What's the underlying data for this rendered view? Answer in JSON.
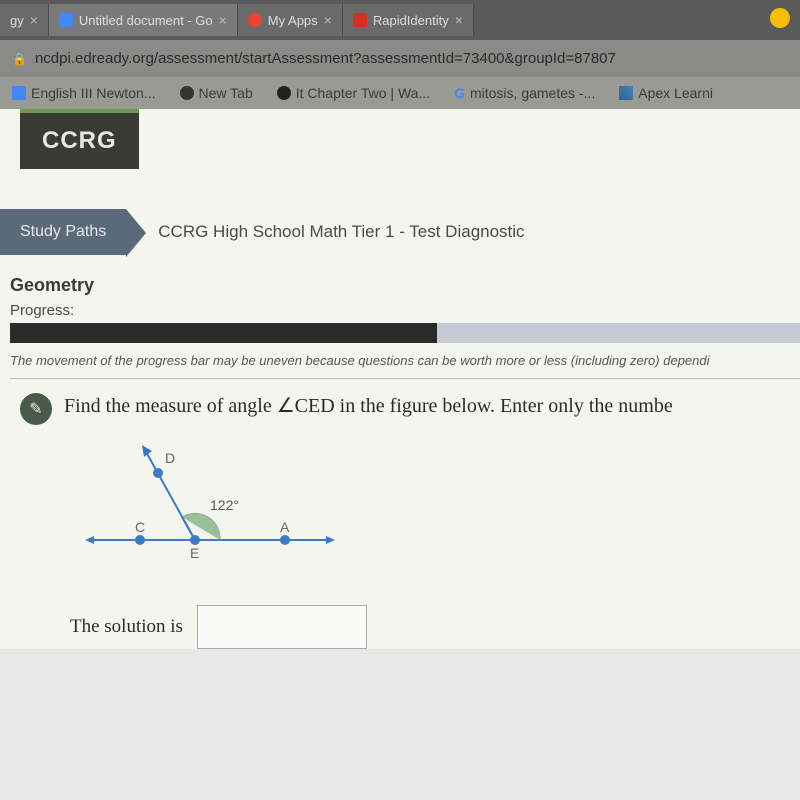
{
  "tabs": [
    {
      "label": "gy",
      "icon": "",
      "close": "×"
    },
    {
      "label": "Untitled document - Go",
      "icon": "doc",
      "close": "×"
    },
    {
      "label": "My Apps",
      "icon": "apps",
      "close": "×"
    },
    {
      "label": "RapidIdentity",
      "icon": "rapid",
      "close": "×"
    }
  ],
  "url": "ncdpi.edready.org/assessment/startAssessment?assessmentId=73400&groupId=87807",
  "bookmarks": [
    {
      "label": "English III Newton...",
      "icon": "doc"
    },
    {
      "label": "New Tab",
      "icon": "tab"
    },
    {
      "label": "It Chapter Two | Wa...",
      "icon": "circle"
    },
    {
      "label": "mitosis, gametes -...",
      "icon": "g"
    },
    {
      "label": "Apex Learni",
      "icon": "apex"
    }
  ],
  "badge": "CCRG",
  "study_paths_label": "Study Paths",
  "path_title": "CCRG High School Math Tier 1 - Test Diagnostic",
  "section_title": "Geometry",
  "progress_label": "Progress:",
  "progress_pct": 54,
  "progress_note": "The movement of the progress bar may be uneven because questions can be worth more or less (including zero) dependi",
  "question": "Find the measure of angle ∠CED in the figure below. Enter only the numbe",
  "figure": {
    "labels": {
      "D": "D",
      "C": "C",
      "E": "E",
      "A": "A"
    },
    "angle_label": "122°",
    "line_color": "#3a7ac8",
    "point_color": "#3a7ac8",
    "arc_color": "#8ab88a",
    "label_color": "#666"
  },
  "solution_label": "The solution is",
  "solution_value": ""
}
